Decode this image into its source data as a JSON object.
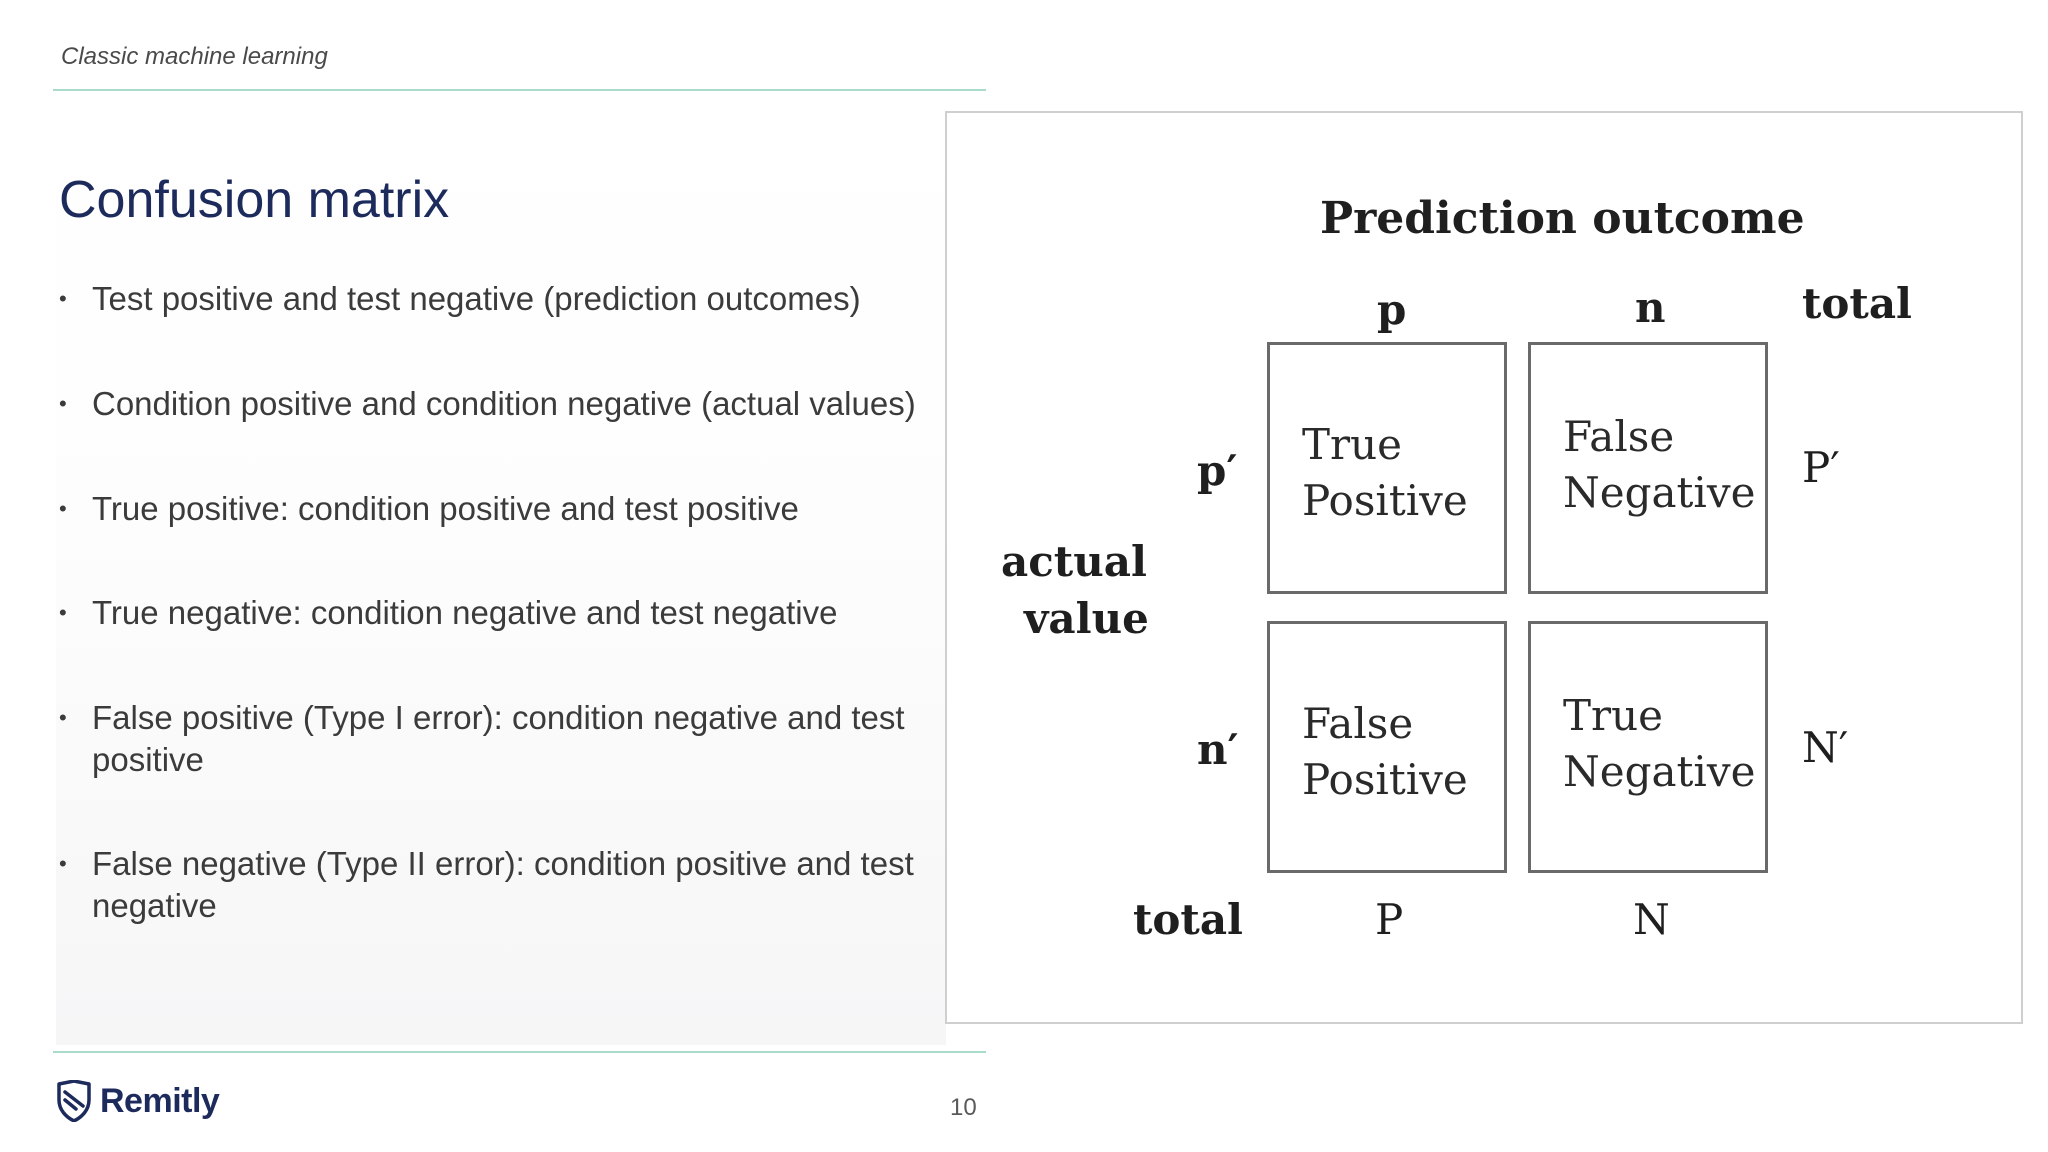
{
  "header": {
    "section_label": "Classic machine learning"
  },
  "slide": {
    "title": "Confusion matrix",
    "bullets": [
      "Test positive and test negative (prediction outcomes)",
      "Condition positive and condition negative (actual values)",
      "True positive: condition positive and test positive",
      "True negative: condition negative and test negative",
      "False positive (Type I error): condition negative and test positive",
      "False negative (Type II error): condition positive and test negative"
    ],
    "bullet_glyph": "•"
  },
  "figure": {
    "title": "Prediction outcome",
    "col_headers": [
      "p",
      "n",
      "total"
    ],
    "row_headers": [
      "p′",
      "n′",
      "total"
    ],
    "row_title_line1": "actual",
    "row_title_line2": "value",
    "cells": [
      [
        "True",
        "Positive"
      ],
      [
        "False",
        "Negative"
      ],
      [
        "False",
        "Positive"
      ],
      [
        "True",
        "Negative"
      ]
    ],
    "row_totals": [
      "P′",
      "N′"
    ],
    "col_totals": [
      "P",
      "N"
    ]
  },
  "footer": {
    "logo_text": "Remitly",
    "logo_icon": "remitly-shield-icon",
    "page_number": "10"
  },
  "colors": {
    "title": "#1d2a5c",
    "rule": "#a8dcc9",
    "body_text": "#3b3b3b"
  }
}
